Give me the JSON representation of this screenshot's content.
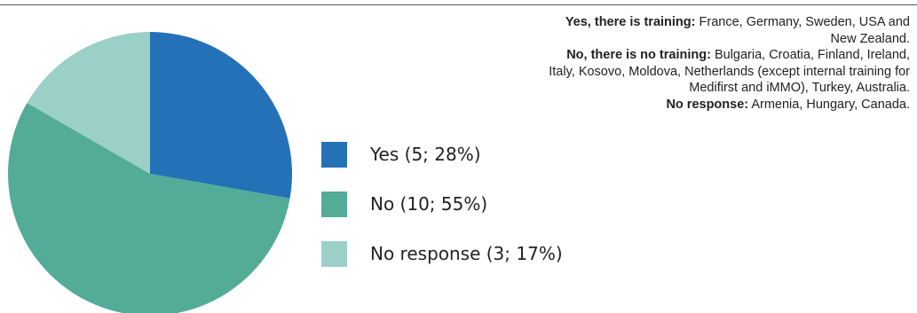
{
  "chart_data": {
    "type": "pie",
    "slices": [
      {
        "label": "Yes (5; 28%)",
        "value": 5,
        "percent": 28,
        "color": "#2471b8"
      },
      {
        "label": "No (10; 55%)",
        "value": 10,
        "percent": 55,
        "color": "#52ac98"
      },
      {
        "label": "No response (3; 17%)",
        "value": 3,
        "percent": 17,
        "color": "#9bd0c8"
      }
    ]
  },
  "notes": [
    {
      "key": "Yes, there is training:",
      "text": " France, Germany, Sweden, USA and New Zealand."
    },
    {
      "key": "No, there is no training:",
      "text": " Bulgaria, Croatia, Finland, Ireland, Italy, Kosovo, Moldova, Netherlands (except internal training for Medifirst and iMMO), Turkey, Australia."
    },
    {
      "key": "No response:",
      "text": " Armenia, Hungary, Canada."
    }
  ]
}
